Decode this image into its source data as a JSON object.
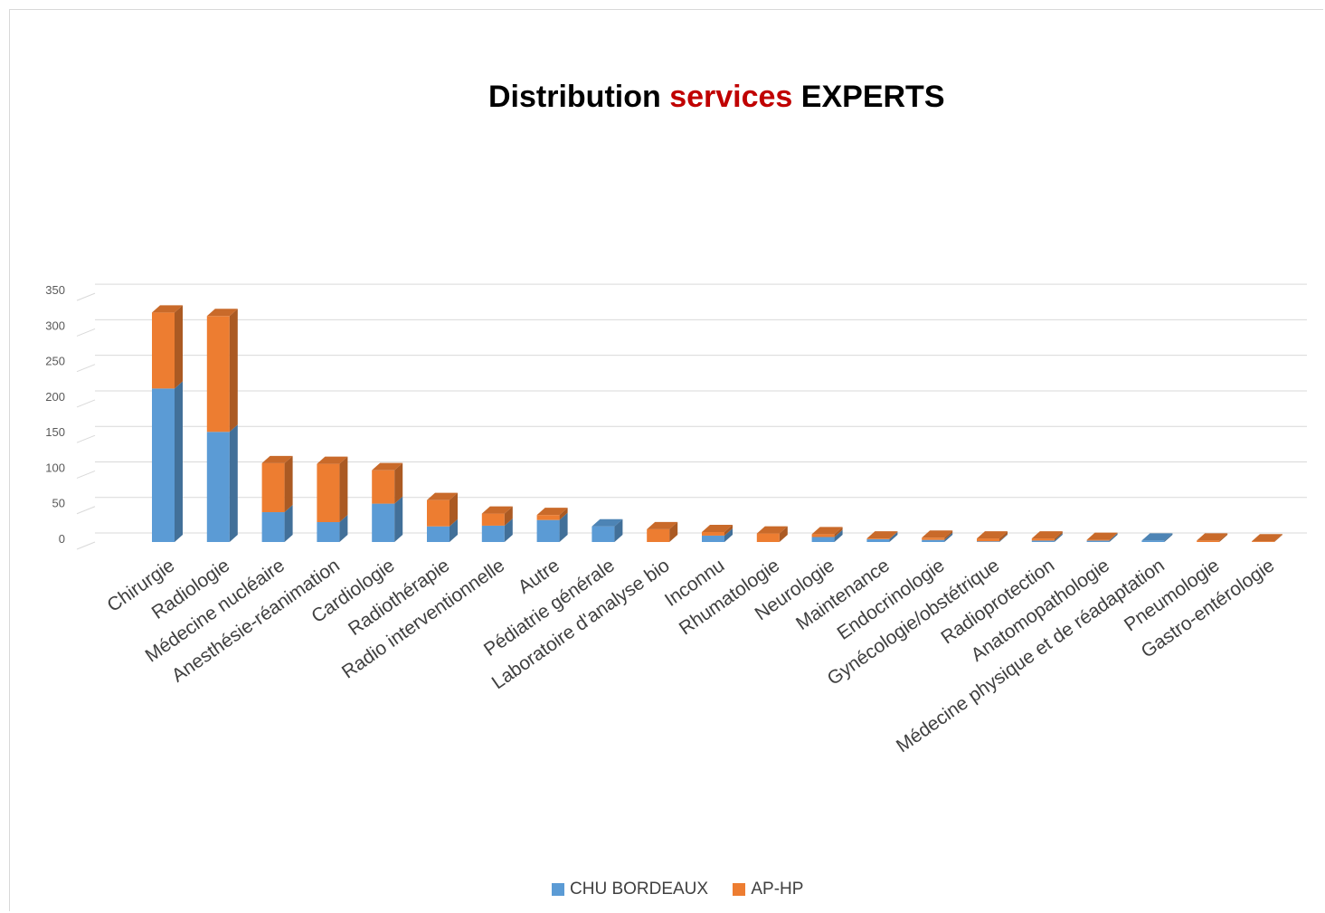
{
  "chart_data": {
    "type": "bar",
    "stacked": true,
    "title_parts": [
      {
        "text": "Distribution ",
        "color": "#000000"
      },
      {
        "text": "services",
        "color": "#c00000"
      },
      {
        "text": " EXPERTS",
        "color": "#000000"
      }
    ],
    "categories": [
      "Chirurgie",
      "Radiologie",
      "Médecine nucléaire",
      "Anesthésie-réanimation",
      "Cardiologie",
      "Radiothérapie",
      "Radio interventionnelle",
      "Autre",
      "Pédiatrie générale",
      "Laboratoire d'analyse bio",
      "Inconnu",
      "Rhumatologie",
      "Neurologie",
      "Maintenance",
      "Endocrinologie",
      "Gynécologie/obstétrique",
      "Radioprotection",
      "Anatomopathologie",
      "Médecine physique et de réadaptation",
      "Pneumologie",
      "Gastro-entérologie"
    ],
    "series": [
      {
        "name": "CHU BORDEAUX",
        "color": "#5b9bd5",
        "values": [
          216,
          155,
          42,
          28,
          54,
          22,
          23,
          31,
          22,
          0,
          9,
          0,
          7,
          4,
          3,
          1,
          2,
          2,
          2,
          0,
          0
        ]
      },
      {
        "name": "AP-HP",
        "color": "#ed7d31",
        "values": [
          107,
          163,
          69,
          82,
          47,
          37,
          17,
          7,
          0,
          18,
          5,
          12,
          4,
          1,
          3,
          4,
          3,
          1,
          0,
          2,
          1
        ]
      }
    ],
    "ylim": [
      0,
      350
    ],
    "yticks": [
      0,
      50,
      100,
      150,
      200,
      250,
      300,
      350
    ],
    "grid": true,
    "legend_position": "bottom"
  }
}
